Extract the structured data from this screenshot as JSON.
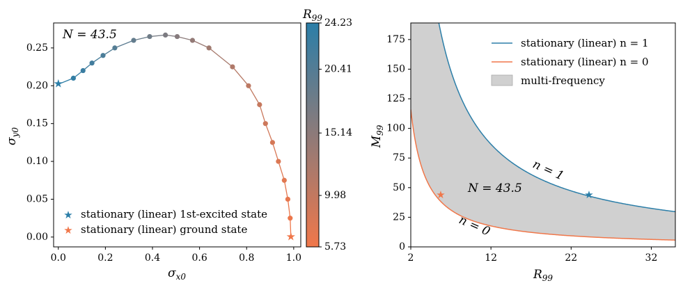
{
  "chart_data": [
    {
      "type": "scatter",
      "title": "",
      "xlabel": "σ_x0",
      "ylabel": "σ_y0",
      "xlim": [
        -0.02,
        1.03
      ],
      "ylim": [
        -0.013,
        0.283
      ],
      "xticks": [
        "0.0",
        "0.2",
        "0.4",
        "0.6",
        "0.8",
        "1.0"
      ],
      "xtick_values": [
        0.0,
        0.2,
        0.4,
        0.6,
        0.8,
        1.0
      ],
      "yticks": [
        "0.00",
        "0.05",
        "0.10",
        "0.15",
        "0.20",
        "0.25"
      ],
      "ytick_values": [
        0.0,
        0.05,
        0.1,
        0.15,
        0.2,
        0.25
      ],
      "annotation": "N = 43.5",
      "points": [
        {
          "x": 0.0,
          "y": 0.202,
          "c": 24.23
        },
        {
          "x": 0.064,
          "y": 0.21,
          "c": 23.5
        },
        {
          "x": 0.105,
          "y": 0.22,
          "c": 22.8
        },
        {
          "x": 0.143,
          "y": 0.23,
          "c": 22.0
        },
        {
          "x": 0.19,
          "y": 0.24,
          "c": 21.2
        },
        {
          "x": 0.24,
          "y": 0.25,
          "c": 20.3
        },
        {
          "x": 0.32,
          "y": 0.26,
          "c": 19.0
        },
        {
          "x": 0.388,
          "y": 0.265,
          "c": 17.8
        },
        {
          "x": 0.455,
          "y": 0.267,
          "c": 16.6
        },
        {
          "x": 0.505,
          "y": 0.265,
          "c": 15.7
        },
        {
          "x": 0.57,
          "y": 0.26,
          "c": 14.5
        },
        {
          "x": 0.64,
          "y": 0.25,
          "c": 13.3
        },
        {
          "x": 0.74,
          "y": 0.225,
          "c": 11.8
        },
        {
          "x": 0.808,
          "y": 0.2,
          "c": 10.6
        },
        {
          "x": 0.855,
          "y": 0.175,
          "c": 9.7
        },
        {
          "x": 0.88,
          "y": 0.15,
          "c": 9.0
        },
        {
          "x": 0.91,
          "y": 0.125,
          "c": 8.3
        },
        {
          "x": 0.935,
          "y": 0.1,
          "c": 7.7
        },
        {
          "x": 0.96,
          "y": 0.075,
          "c": 7.1
        },
        {
          "x": 0.975,
          "y": 0.05,
          "c": 6.6
        },
        {
          "x": 0.985,
          "y": 0.025,
          "c": 6.1
        },
        {
          "x": 0.988,
          "y": 0.0,
          "c": 5.73
        }
      ],
      "colorbar": {
        "label": "R_99",
        "min": 5.73,
        "max": 24.23,
        "ticks": [
          "24.23",
          "20.41",
          "15.14",
          "9.98",
          "5.73"
        ],
        "tick_values": [
          24.23,
          20.41,
          15.14,
          9.98,
          5.73
        ],
        "color_high": "#2b7ea8",
        "color_low": "#f0774a"
      },
      "legend_position": "bottom-left",
      "legend": [
        {
          "label": "stationary (linear) 1st-excited state",
          "color": "#2b7ea8"
        },
        {
          "label": "stationary (linear) ground state",
          "color": "#f0774a"
        }
      ]
    },
    {
      "type": "line",
      "title": "",
      "xlabel": "R_99",
      "ylabel": "M_99",
      "xlim": [
        2,
        35
      ],
      "ylim": [
        0,
        189
      ],
      "xticks": [
        "2",
        "12",
        "22",
        "32"
      ],
      "xtick_values": [
        2,
        12,
        22,
        32
      ],
      "yticks": [
        "0",
        "25",
        "50",
        "75",
        "100",
        "125",
        "150",
        "175"
      ],
      "ytick_values": [
        0,
        25,
        50,
        75,
        100,
        125,
        150,
        175
      ],
      "legend_position": "top-right",
      "series": [
        {
          "name": "stationary (linear) n = 1",
          "color": "#2b7ea8",
          "c": 1040,
          "p": 1
        },
        {
          "name": "stationary (linear) n = 0",
          "color": "#f0774a",
          "c": 240,
          "p": 1.05
        }
      ],
      "fill_label": "multi-frequency",
      "fill_color": "#d0d0d0",
      "connector": {
        "x_start": 5.73,
        "x_end": 24.23,
        "y": 43.5
      },
      "annotations": [
        "N = 43.5",
        "n = 1",
        "n = 0"
      ]
    }
  ]
}
